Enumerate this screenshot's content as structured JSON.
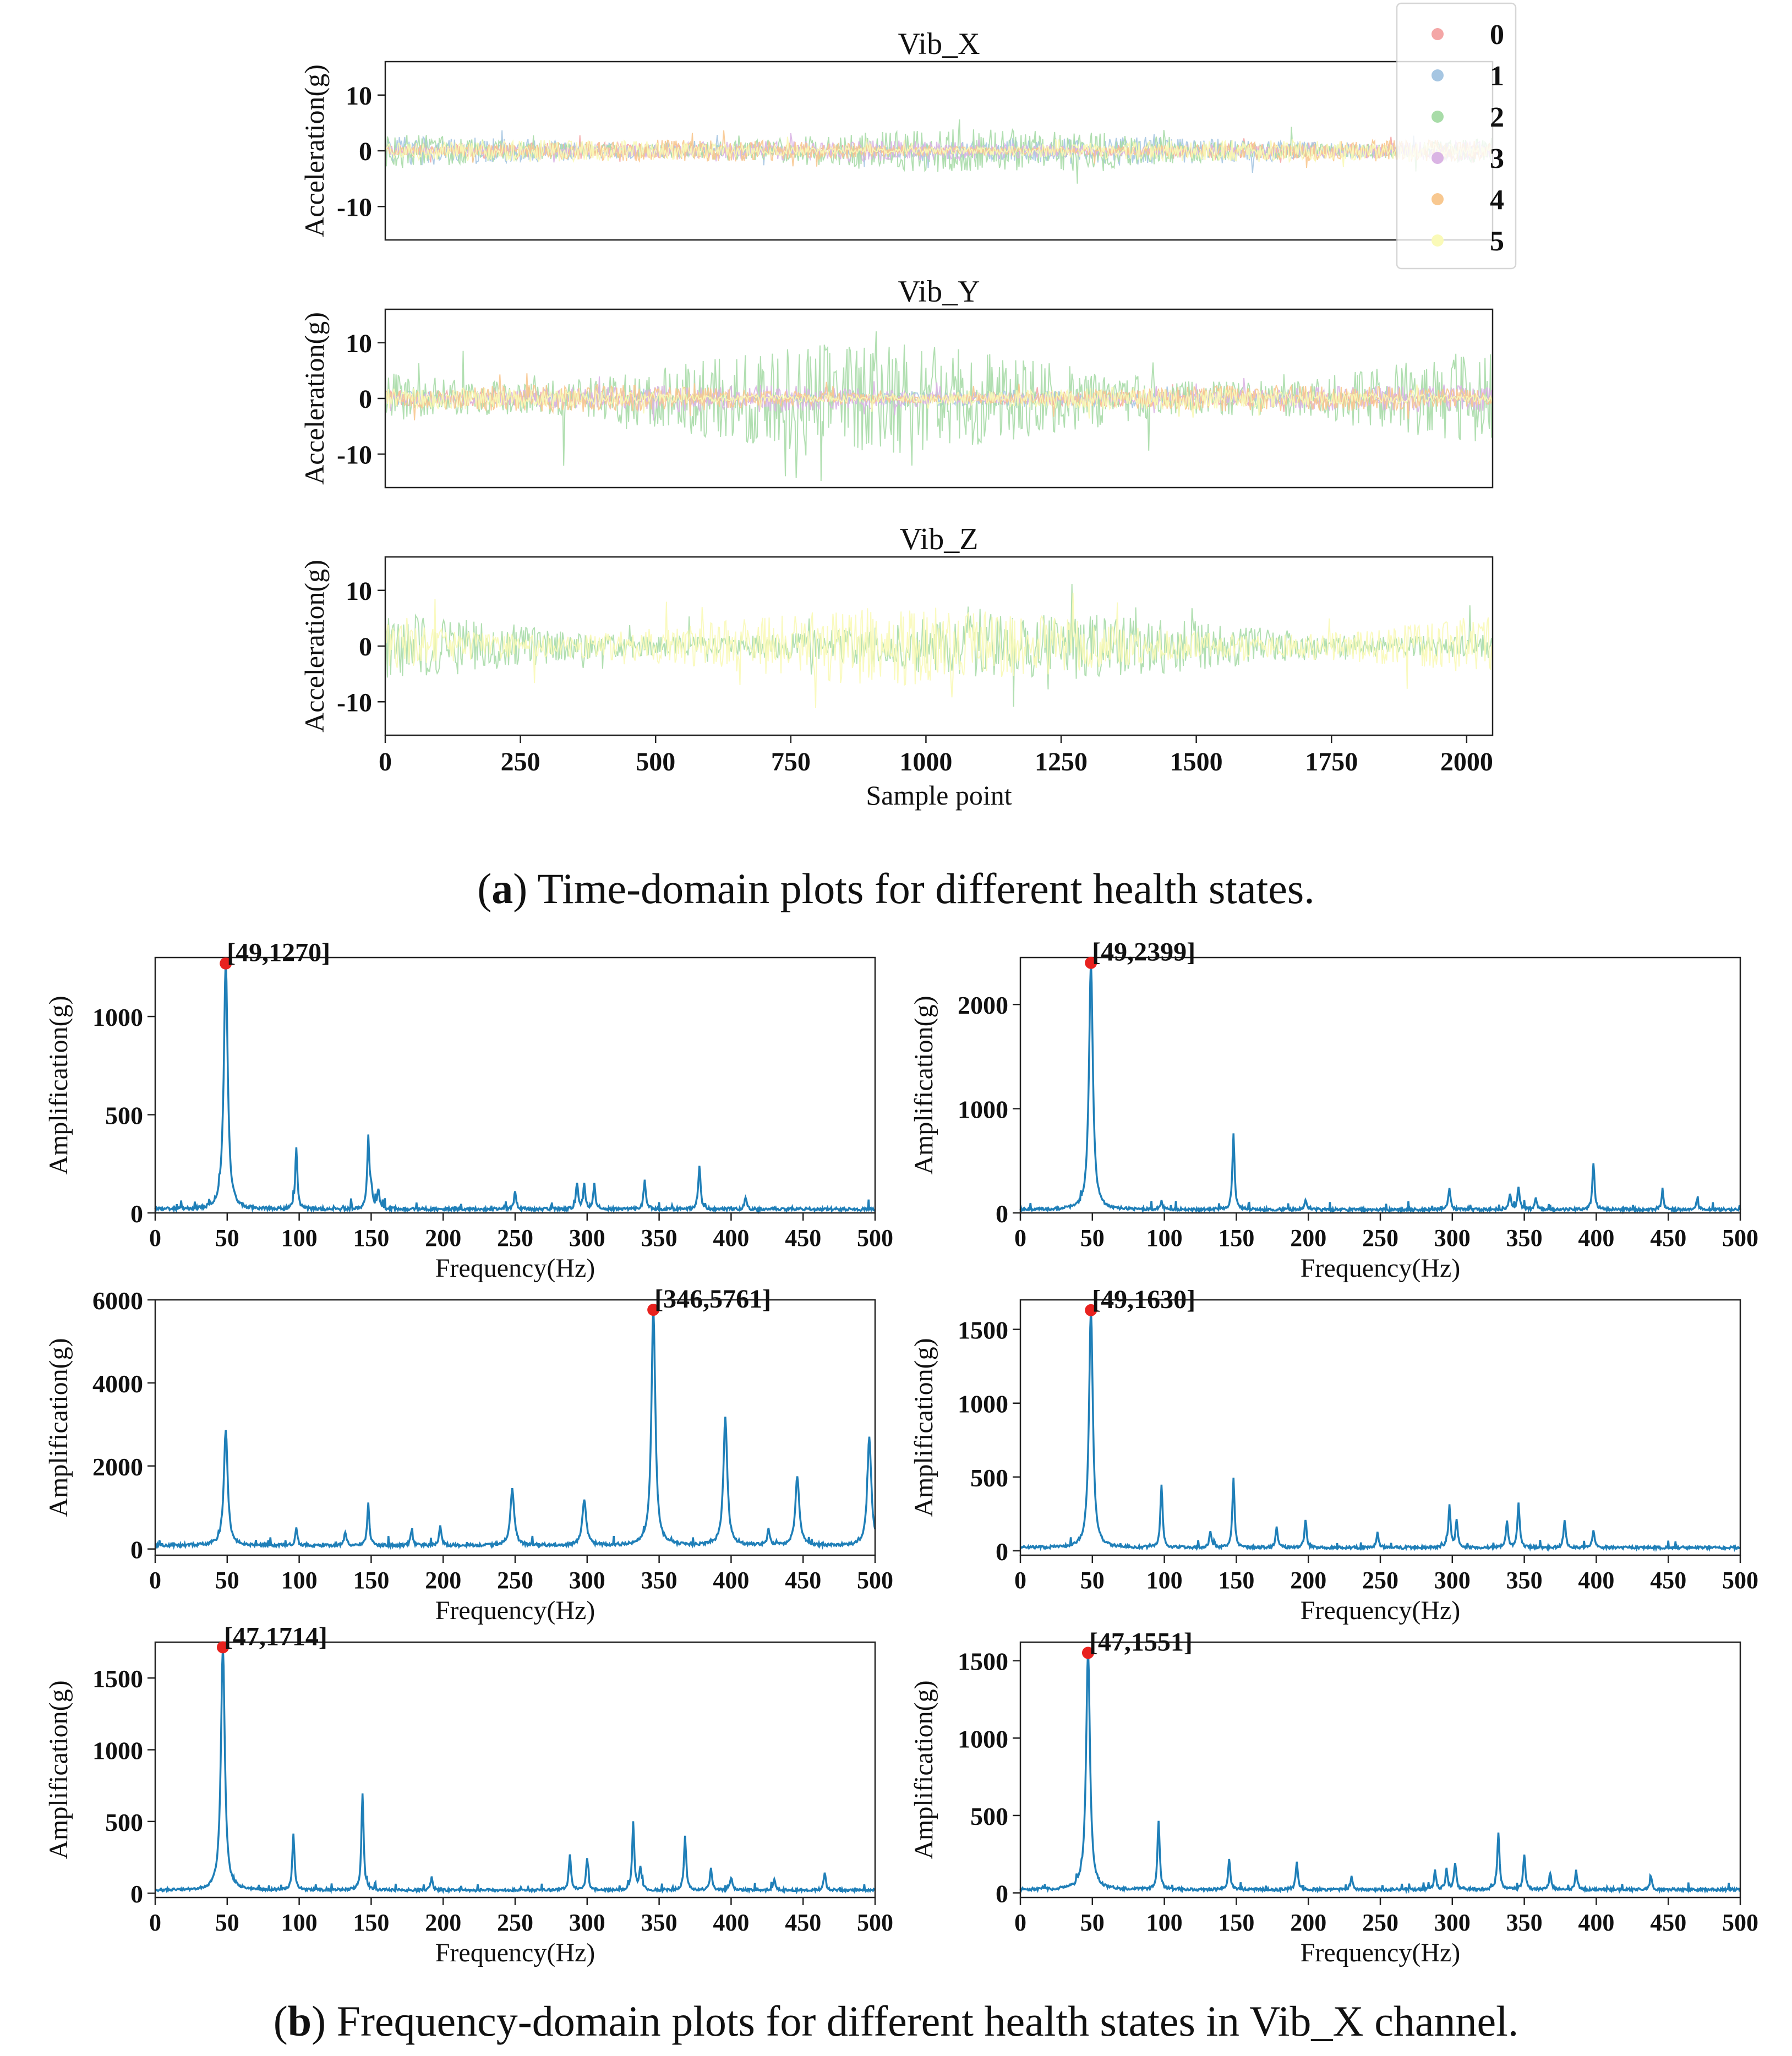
{
  "captions": {
    "a_label": "a",
    "a_text": ") Time-domain plots for different health states.",
    "b_label": "b",
    "b_text": ") Frequency-domain plots for different health states in Vib_X channel."
  },
  "colors": {
    "states": [
      "#f4a6a6",
      "#a6c6e2",
      "#a8dca8",
      "#dab4e4",
      "#f8c890",
      "#fafab8"
    ],
    "spectrum": "#1f7fb8",
    "peak": "#e8221f",
    "axis": "#222222"
  },
  "chart_data": [
    {
      "type": "line",
      "title": "Vib_X",
      "xlabel": "",
      "ylabel": "Acceleration(g)",
      "xlim": [
        0,
        2048
      ],
      "ylim": [
        -16,
        16
      ],
      "yticks": [
        10,
        0,
        -10
      ],
      "ytick_labels": [
        "10",
        "0",
        "-10"
      ],
      "xticks": [],
      "xtick_labels": [],
      "series": [
        {
          "name": "0",
          "approx_amplitude": 1.5
        },
        {
          "name": "1",
          "approx_amplitude": 2.5
        },
        {
          "name": "2",
          "approx_amplitude": 4.0
        },
        {
          "name": "3",
          "approx_amplitude": 2.0
        },
        {
          "name": "4",
          "approx_amplitude": 2.0
        },
        {
          "name": "5",
          "approx_amplitude": 2.0
        }
      ],
      "legend": {
        "position": "top-right",
        "entries": [
          "0",
          "1",
          "2",
          "3",
          "4",
          "5"
        ]
      }
    },
    {
      "type": "line",
      "title": "Vib_Y",
      "xlabel": "",
      "ylabel": "Acceleration(g)",
      "xlim": [
        0,
        2048
      ],
      "ylim": [
        -16,
        16
      ],
      "yticks": [
        10,
        0,
        -10
      ],
      "ytick_labels": [
        "10",
        "0",
        "-10"
      ],
      "xticks": [],
      "xtick_labels": [],
      "series": [
        {
          "name": "0",
          "approx_amplitude": 1.5
        },
        {
          "name": "1",
          "approx_amplitude": 1.5
        },
        {
          "name": "2",
          "approx_amplitude": 10.0
        },
        {
          "name": "3",
          "approx_amplitude": 2.5
        },
        {
          "name": "4",
          "approx_amplitude": 2.5
        },
        {
          "name": "5",
          "approx_amplitude": 2.0
        }
      ]
    },
    {
      "type": "line",
      "title": "Vib_Z",
      "xlabel": "Sample point",
      "ylabel": "Acceleration(g)",
      "xlim": [
        0,
        2048
      ],
      "ylim": [
        -16,
        16
      ],
      "yticks": [
        10,
        0,
        -10
      ],
      "ytick_labels": [
        "10",
        "0",
        "-10"
      ],
      "xticks": [
        0,
        250,
        500,
        750,
        1000,
        1250,
        1500,
        1750,
        2000
      ],
      "xtick_labels": [
        "0",
        "250",
        "500",
        "750",
        "1000",
        "1250",
        "1500",
        "1750",
        "2000"
      ],
      "series": [
        {
          "name": "2",
          "approx_amplitude": 6.0
        },
        {
          "name": "5",
          "approx_amplitude": 7.0
        }
      ]
    },
    {
      "type": "line",
      "xlabel": "Frequency(Hz)",
      "ylabel": "Amplification(g)",
      "xlim": [
        0,
        500
      ],
      "ylim": [
        0,
        1300
      ],
      "baseline": 18,
      "yticks": [
        0,
        500,
        1000
      ],
      "ytick_labels": [
        "0",
        "500",
        "1000"
      ],
      "xticks": [
        0,
        50,
        100,
        150,
        200,
        250,
        300,
        350,
        400,
        450,
        500
      ],
      "xtick_labels": [
        "0",
        "50",
        "100",
        "150",
        "200",
        "250",
        "300",
        "350",
        "400",
        "450",
        "500"
      ],
      "peak": {
        "x": 49,
        "y": 1270,
        "label": "[49,1270]"
      },
      "spikes": [
        [
          49,
          1270
        ],
        [
          98,
          310
        ],
        [
          148,
          355
        ],
        [
          150,
          90
        ],
        [
          155,
          100
        ],
        [
          250,
          90
        ],
        [
          293,
          130
        ],
        [
          298,
          120
        ],
        [
          305,
          130
        ],
        [
          340,
          150
        ],
        [
          378,
          225
        ],
        [
          410,
          55
        ]
      ]
    },
    {
      "type": "line",
      "xlabel": "Frequency(Hz)",
      "ylabel": "Amplification(g)",
      "xlim": [
        0,
        500
      ],
      "ylim": [
        0,
        2450
      ],
      "baseline": 30,
      "yticks": [
        0,
        1000,
        2000
      ],
      "ytick_labels": [
        "0",
        "1000",
        "2000"
      ],
      "xticks": [
        0,
        50,
        100,
        150,
        200,
        250,
        300,
        350,
        400,
        450,
        500
      ],
      "xtick_labels": [
        "0",
        "50",
        "100",
        "150",
        "200",
        "250",
        "300",
        "350",
        "400",
        "450",
        "500"
      ],
      "peak": {
        "x": 49,
        "y": 2399,
        "label": "[49,2399]"
      },
      "spikes": [
        [
          49,
          2399
        ],
        [
          98,
          80
        ],
        [
          148,
          720
        ],
        [
          198,
          100
        ],
        [
          298,
          210
        ],
        [
          340,
          150
        ],
        [
          346,
          220
        ],
        [
          358,
          110
        ],
        [
          398,
          450
        ],
        [
          446,
          160
        ],
        [
          470,
          80
        ]
      ]
    },
    {
      "type": "line",
      "xlabel": "Frequency(Hz)",
      "ylabel": "Amplification(g)",
      "xlim": [
        0,
        500
      ],
      "ylim": [
        -150,
        6000
      ],
      "baseline": 80,
      "yticks": [
        0,
        2000,
        4000,
        6000
      ],
      "ytick_labels": [
        "0",
        "2000",
        "4000",
        "6000"
      ],
      "xticks": [
        0,
        50,
        100,
        150,
        200,
        250,
        300,
        350,
        400,
        450,
        500
      ],
      "xtick_labels": [
        "0",
        "50",
        "100",
        "150",
        "200",
        "250",
        "300",
        "350",
        "400",
        "450",
        "500"
      ],
      "peak": {
        "x": 346,
        "y": 5761,
        "label": "[346,5761]"
      },
      "spikes": [
        [
          49,
          2800
        ],
        [
          98,
          400
        ],
        [
          132,
          340
        ],
        [
          148,
          1000
        ],
        [
          178,
          350
        ],
        [
          198,
          500
        ],
        [
          248,
          1350
        ],
        [
          298,
          1130
        ],
        [
          346,
          5761
        ],
        [
          396,
          3100
        ],
        [
          426,
          380
        ],
        [
          446,
          1680
        ],
        [
          496,
          2650
        ]
      ]
    },
    {
      "type": "line",
      "xlabel": "Frequency(Hz)",
      "ylabel": "Amplification(g)",
      "xlim": [
        0,
        500
      ],
      "ylim": [
        -30,
        1700
      ],
      "baseline": 20,
      "yticks": [
        0,
        500,
        1000,
        1500
      ],
      "ytick_labels": [
        "0",
        "500",
        "1000",
        "1500"
      ],
      "xticks": [
        0,
        50,
        100,
        150,
        200,
        250,
        300,
        350,
        400,
        450,
        500
      ],
      "xtick_labels": [
        "0",
        "50",
        "100",
        "150",
        "200",
        "250",
        "300",
        "350",
        "400",
        "450",
        "500"
      ],
      "peak": {
        "x": 49,
        "y": 1630,
        "label": "[49,1630]"
      },
      "spikes": [
        [
          49,
          1630
        ],
        [
          98,
          430
        ],
        [
          132,
          110
        ],
        [
          148,
          470
        ],
        [
          178,
          140
        ],
        [
          198,
          180
        ],
        [
          248,
          100
        ],
        [
          298,
          290
        ],
        [
          303,
          180
        ],
        [
          338,
          180
        ],
        [
          346,
          300
        ],
        [
          378,
          190
        ],
        [
          398,
          120
        ]
      ]
    },
    {
      "type": "line",
      "xlabel": "Frequency(Hz)",
      "ylabel": "Amplification(g)",
      "xlim": [
        0,
        500
      ],
      "ylim": [
        -30,
        1750
      ],
      "baseline": 20,
      "yticks": [
        0,
        500,
        1000,
        1500
      ],
      "ytick_labels": [
        "0",
        "500",
        "1000",
        "1500"
      ],
      "xticks": [
        0,
        50,
        100,
        150,
        200,
        250,
        300,
        350,
        400,
        450,
        500
      ],
      "xtick_labels": [
        "0",
        "50",
        "100",
        "150",
        "200",
        "250",
        "300",
        "350",
        "400",
        "450",
        "500"
      ],
      "peak": {
        "x": 47,
        "y": 1714,
        "label": "[47,1714]"
      },
      "spikes": [
        [
          47,
          1714
        ],
        [
          96,
          390
        ],
        [
          144,
          680
        ],
        [
          192,
          90
        ],
        [
          288,
          250
        ],
        [
          300,
          220
        ],
        [
          332,
          470
        ],
        [
          337,
          160
        ],
        [
          368,
          380
        ],
        [
          386,
          150
        ],
        [
          400,
          90
        ],
        [
          430,
          80
        ],
        [
          465,
          120
        ]
      ]
    },
    {
      "type": "line",
      "xlabel": "Frequency(Hz)",
      "ylabel": "Amplification(g)",
      "xlim": [
        0,
        500
      ],
      "ylim": [
        -30,
        1620
      ],
      "baseline": 20,
      "yticks": [
        0,
        500,
        1000,
        1500
      ],
      "ytick_labels": [
        "0",
        "500",
        "1000",
        "1500"
      ],
      "xticks": [
        0,
        50,
        100,
        150,
        200,
        250,
        300,
        350,
        400,
        450,
        500
      ],
      "xtick_labels": [
        "0",
        "50",
        "100",
        "150",
        "200",
        "250",
        "300",
        "350",
        "400",
        "450",
        "500"
      ],
      "peak": {
        "x": 47,
        "y": 1551,
        "label": "[47,1551]"
      },
      "spikes": [
        [
          47,
          1551
        ],
        [
          96,
          440
        ],
        [
          145,
          200
        ],
        [
          192,
          180
        ],
        [
          230,
          80
        ],
        [
          288,
          120
        ],
        [
          296,
          130
        ],
        [
          302,
          170
        ],
        [
          332,
          370
        ],
        [
          350,
          230
        ],
        [
          368,
          110
        ],
        [
          386,
          120
        ],
        [
          438,
          80
        ]
      ]
    }
  ]
}
